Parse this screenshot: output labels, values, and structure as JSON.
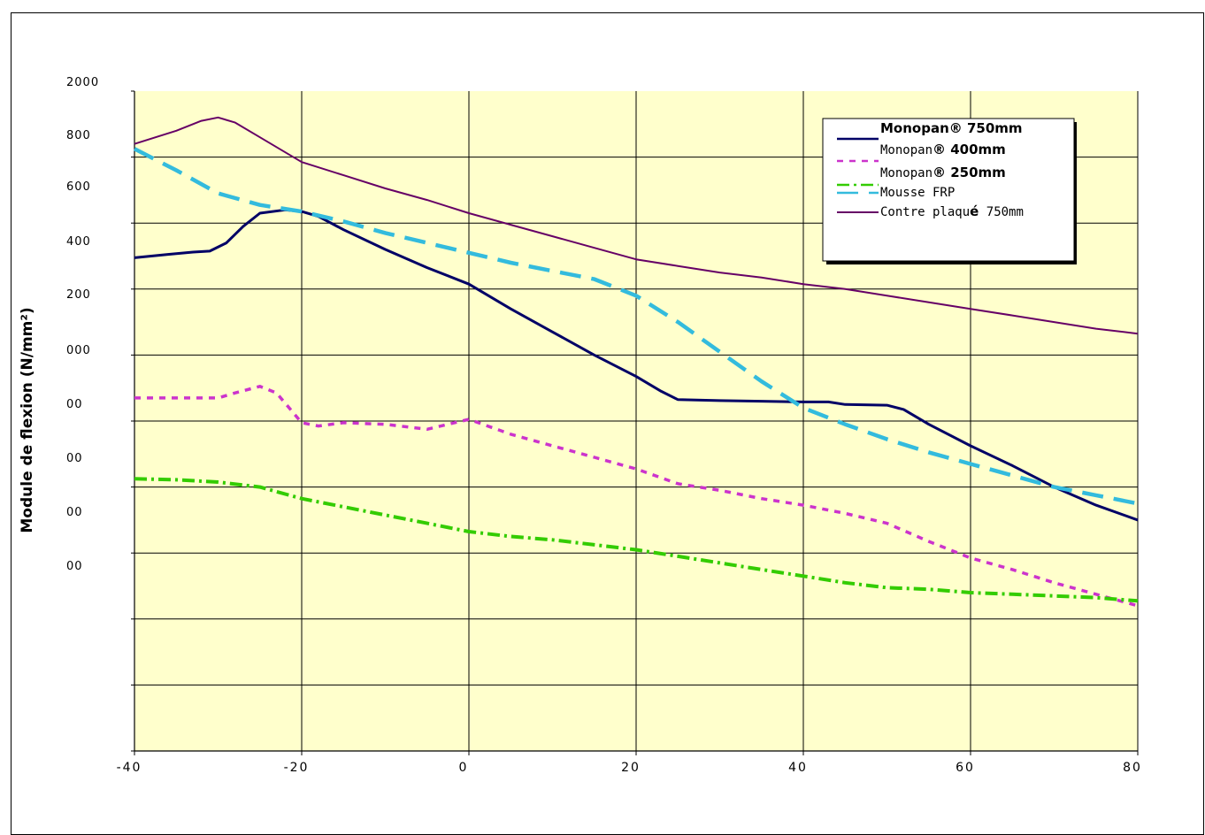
{
  "chart_data": {
    "type": "line",
    "ylabel": "Module de flexion (N/mm²)",
    "xlabel": "",
    "xlim": [
      -40,
      80
    ],
    "x_ticks": [
      "-40",
      "-20",
      "0",
      "20",
      "40",
      "60",
      "80"
    ],
    "y_tick_labels": [
      "2000",
      "800",
      "600",
      "400",
      "200",
      "000",
      "00",
      "00",
      "00",
      "00"
    ],
    "ylim": [
      0,
      2000
    ],
    "grid": true,
    "plot_background": "#ffffcc",
    "legend_position": "top-right",
    "series": [
      {
        "name": "Monopan® 750mm",
        "legend_parts": [
          "Monopan® 750mm"
        ],
        "color": "#000066",
        "dash": "solid",
        "x": [
          -40,
          -36,
          -33,
          -31,
          -29,
          -27,
          -25,
          -22,
          -20,
          -18,
          -15,
          -10,
          -5,
          0,
          5,
          10,
          15,
          20,
          23,
          25,
          30,
          35,
          40,
          43,
          45,
          50,
          52,
          55,
          60,
          65,
          70,
          75,
          80
        ],
        "y": [
          1495,
          1505,
          1512,
          1515,
          1540,
          1590,
          1630,
          1640,
          1635,
          1620,
          1580,
          1520,
          1465,
          1415,
          1340,
          1270,
          1200,
          1135,
          1090,
          1065,
          1062,
          1060,
          1058,
          1058,
          1050,
          1048,
          1035,
          990,
          925,
          865,
          800,
          745,
          700
        ]
      },
      {
        "name": "Monopan® 400mm",
        "legend_parts": [
          "Monopan",
          "® 400mm"
        ],
        "color": "#cc33cc",
        "dash": "short",
        "x": [
          -40,
          -35,
          -30,
          -28,
          -25,
          -23,
          -20,
          -18,
          -15,
          -10,
          -5,
          0,
          5,
          10,
          15,
          20,
          25,
          30,
          35,
          40,
          45,
          50,
          55,
          60,
          65,
          70,
          75,
          80
        ],
        "y": [
          1070,
          1070,
          1070,
          1085,
          1105,
          1085,
          995,
          985,
          995,
          990,
          975,
          1005,
          960,
          925,
          890,
          855,
          810,
          790,
          765,
          745,
          720,
          690,
          635,
          585,
          550,
          510,
          475,
          440
        ]
      },
      {
        "name": "Monopan® 250mm",
        "legend_parts": [
          "Monopan",
          "® 250mm"
        ],
        "color": "#33cc00",
        "dash": "dashdot",
        "x": [
          -40,
          -35,
          -30,
          -25,
          -20,
          -15,
          -10,
          -5,
          0,
          5,
          10,
          15,
          20,
          25,
          30,
          35,
          40,
          45,
          50,
          55,
          60,
          65,
          70,
          75,
          80
        ],
        "y": [
          825,
          822,
          815,
          800,
          765,
          740,
          715,
          690,
          665,
          650,
          640,
          625,
          610,
          590,
          570,
          550,
          530,
          510,
          495,
          490,
          480,
          475,
          470,
          465,
          455
        ]
      },
      {
        "name": "Mousse FRP",
        "legend_parts": [
          "Mousse FRP"
        ],
        "color": "#33bbdd",
        "dash": "long",
        "x": [
          -40,
          -35,
          -30,
          -25,
          -20,
          -15,
          -10,
          -5,
          0,
          5,
          10,
          15,
          20,
          25,
          30,
          35,
          40,
          45,
          50,
          55,
          60,
          65,
          70,
          75,
          80
        ],
        "y": [
          1825,
          1760,
          1690,
          1655,
          1635,
          1605,
          1570,
          1540,
          1510,
          1480,
          1455,
          1430,
          1380,
          1300,
          1210,
          1120,
          1040,
          990,
          945,
          905,
          870,
          835,
          800,
          775,
          750
        ]
      },
      {
        "name": "Contre plaqué 750mm",
        "legend_parts": [
          "Contre plaqu",
          "é",
          " 750mm"
        ],
        "color": "#660066",
        "dash": "solid",
        "x": [
          -40,
          -35,
          -32,
          -30,
          -28,
          -25,
          -20,
          -15,
          -10,
          -5,
          0,
          5,
          10,
          15,
          20,
          25,
          30,
          35,
          40,
          45,
          50,
          55,
          60,
          65,
          70,
          75,
          80
        ],
        "y": [
          1840,
          1880,
          1910,
          1920,
          1905,
          1860,
          1785,
          1745,
          1705,
          1670,
          1630,
          1595,
          1560,
          1525,
          1490,
          1470,
          1450,
          1435,
          1415,
          1400,
          1380,
          1360,
          1340,
          1320,
          1300,
          1280,
          1265
        ]
      }
    ]
  }
}
